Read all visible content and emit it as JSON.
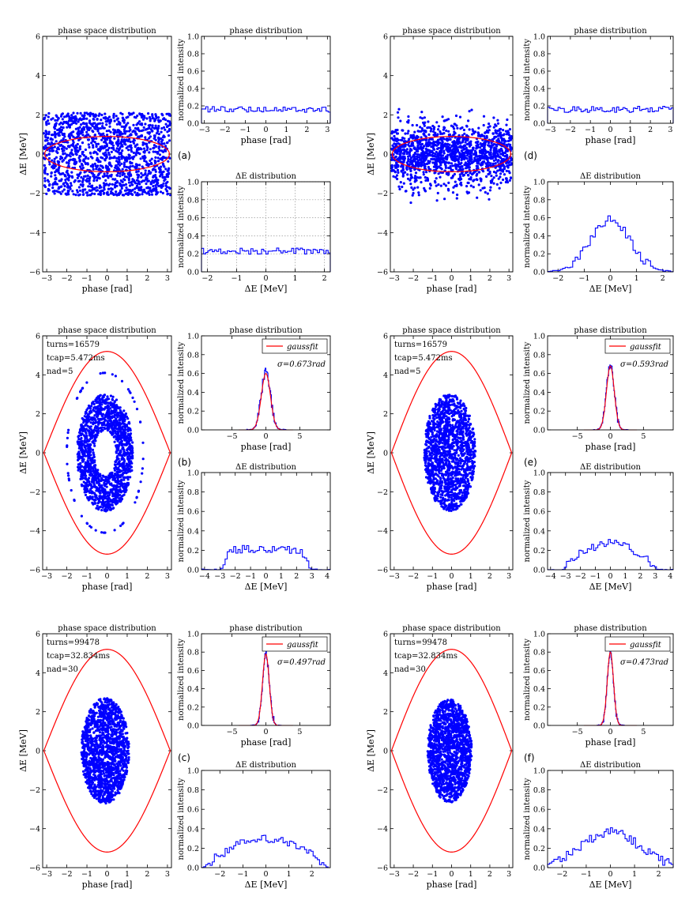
{
  "figure": {
    "colors": {
      "scatter": "#0000ff",
      "hist": "#0000ff",
      "separatrix": "#ff0000",
      "fit": "#ff0000",
      "grid": "#999999"
    },
    "titles": {
      "phase_space": "phase space distribution",
      "phase": "phase distribution",
      "energy": "ΔE distribution"
    },
    "axis_labels": {
      "phase": "phase [rad]",
      "energy": "ΔE [MeV]",
      "intensity": "normalized intensity"
    },
    "legend_label": "gaussfit"
  },
  "chart_data": [
    {
      "panel": "a",
      "type": "scatter",
      "title": "phase space distribution",
      "xlabel": "phase [rad]",
      "ylabel": "ΔE [MeV]",
      "xlim": [
        -3.2,
        3.2
      ],
      "ylim": [
        -6,
        6
      ],
      "xticks": [
        -3,
        -2,
        -1,
        0,
        1,
        2,
        3
      ],
      "yticks": [
        -6,
        -4,
        -2,
        0,
        2,
        4,
        6
      ],
      "distribution": {
        "shape": "uniform",
        "phase_halfwidth": 3.14,
        "energy_halfwidth": 2.1,
        "n_points": 1500
      },
      "overlay": {
        "type": "ellipse",
        "phase_halfwidth": 3.1,
        "energy_halfwidth": 0.9
      },
      "annotations": [],
      "sub_phase": {
        "title": "phase distribution",
        "xlabel": "phase [rad]",
        "ylabel": "normalized intensity",
        "xlim": [
          -3.14,
          3.14
        ],
        "ylim": [
          0,
          1.0
        ],
        "xticks": [
          -3,
          -2,
          -1,
          0,
          1,
          2,
          3
        ],
        "yticks": [
          0.0,
          0.2,
          0.4,
          0.6,
          0.8,
          1.0
        ],
        "histogram": {
          "shape": "flat",
          "level": 0.16,
          "bins": 60
        },
        "legend": null
      },
      "sub_energy": {
        "title": "ΔE distribution",
        "xlabel": "ΔE [MeV]",
        "ylabel": "normalized intensity",
        "xlim": [
          -2.2,
          2.2
        ],
        "ylim": [
          0,
          1.0
        ],
        "xticks": [
          -2,
          -1,
          0,
          1,
          2
        ],
        "yticks": [
          0.0,
          0.2,
          0.4,
          0.6,
          0.8,
          1.0
        ],
        "histogram": {
          "shape": "flat",
          "level": 0.23,
          "bins": 60
        },
        "grid": true
      }
    },
    {
      "panel": "b",
      "type": "scatter",
      "title": "phase space distribution",
      "xlabel": "phase [rad]",
      "ylabel": "ΔE [MeV]",
      "xlim": [
        -3.2,
        3.2
      ],
      "ylim": [
        -6,
        6
      ],
      "xticks": [
        -3,
        -2,
        -1,
        0,
        1,
        2,
        3
      ],
      "yticks": [
        -6,
        -4,
        -2,
        0,
        2,
        4,
        6
      ],
      "distribution": {
        "shape": "hollow",
        "center_phase": -0.1,
        "phase_sigma": 0.65,
        "energy_sigma": 1.4,
        "phase_max": 1.4,
        "energy_max": 3.0,
        "n_points": 1500
      },
      "overlay": {
        "type": "separatrix",
        "peak_energy": 5.2,
        "phase_limit": 3.14
      },
      "annotations": [
        "turns=16579",
        "tcap=5.472ms",
        "nad=5"
      ],
      "sub_phase": {
        "title": "phase distribution",
        "xlabel": "phase [rad]",
        "ylabel": "normalized intensity",
        "xlim": [
          -9.5,
          9.5
        ],
        "ylim": [
          0,
          1.0
        ],
        "xticks": [
          -5,
          0,
          5
        ],
        "yticks": [
          0.0,
          0.2,
          0.4,
          0.6,
          0.8,
          1.0
        ],
        "histogram": {
          "shape": "gauss",
          "sigma": 0.673,
          "peak": 0.62,
          "bins": 60
        },
        "fit": {
          "sigma": 0.673,
          "peak": 0.6
        },
        "legend": "gaussfit",
        "sigma_label": "σ=0.673rad"
      },
      "sub_energy": {
        "title": "ΔE distribution",
        "xlabel": "ΔE [MeV]",
        "ylabel": "normalized intensity",
        "xlim": [
          -4.2,
          4.2
        ],
        "ylim": [
          0,
          1.0
        ],
        "xticks": [
          -4,
          -3,
          -2,
          -1,
          0,
          1,
          2,
          3,
          4
        ],
        "yticks": [
          0.0,
          0.2,
          0.4,
          0.6,
          0.8,
          1.0
        ],
        "histogram": {
          "shape": "plateau",
          "level": 0.21,
          "halfwidth": 2.9,
          "bins": 60
        },
        "grid": false
      }
    },
    {
      "panel": "c",
      "type": "scatter",
      "title": "phase space distribution",
      "xlabel": "phase [rad]",
      "ylabel": "ΔE [MeV]",
      "xlim": [
        -3.2,
        3.2
      ],
      "ylim": [
        -6,
        6
      ],
      "xticks": [
        -3,
        -2,
        -1,
        0,
        1,
        2,
        3
      ],
      "yticks": [
        -6,
        -4,
        -2,
        0,
        2,
        4,
        6
      ],
      "distribution": {
        "shape": "filled",
        "center_phase": -0.1,
        "phase_max": 1.2,
        "energy_max": 2.7,
        "n_points": 1500
      },
      "overlay": {
        "type": "separatrix",
        "peak_energy": 5.2,
        "phase_limit": 3.14
      },
      "annotations": [
        "turns=99478",
        "tcap=32.834ms",
        "nad=30"
      ],
      "sub_phase": {
        "title": "phase distribution",
        "xlabel": "phase [rad]",
        "ylabel": "normalized intensity",
        "xlim": [
          -9.5,
          9.5
        ],
        "ylim": [
          0,
          1.0
        ],
        "xticks": [
          -5,
          0,
          5
        ],
        "yticks": [
          0.0,
          0.2,
          0.4,
          0.6,
          0.8,
          1.0
        ],
        "histogram": {
          "shape": "gauss",
          "sigma": 0.497,
          "peak": 0.78,
          "bins": 60
        },
        "fit": {
          "sigma": 0.497,
          "peak": 0.78
        },
        "legend": "gaussfit",
        "sigma_label": "σ=0.497rad"
      },
      "sub_energy": {
        "title": "ΔE distribution",
        "xlabel": "ΔE [MeV]",
        "ylabel": "normalized intensity",
        "xlim": [
          -2.8,
          2.8
        ],
        "ylim": [
          0,
          1.0
        ],
        "xticks": [
          -2,
          -1,
          0,
          1,
          2
        ],
        "yticks": [
          0.0,
          0.2,
          0.4,
          0.6,
          0.8,
          1.0
        ],
        "histogram": {
          "shape": "dome",
          "peak": 0.29,
          "halfwidth": 2.7,
          "bins": 60
        },
        "grid": false
      }
    },
    {
      "panel": "d",
      "type": "scatter",
      "title": "phase space distribution",
      "xlabel": "phase [rad]",
      "ylabel": "ΔE [MeV]",
      "xlim": [
        -3.2,
        3.2
      ],
      "ylim": [
        -6,
        6
      ],
      "xticks": [
        -3,
        -2,
        -1,
        0,
        1,
        2,
        3
      ],
      "yticks": [
        -6,
        -4,
        -2,
        0,
        2,
        4,
        6
      ],
      "distribution": {
        "shape": "uniform-gauss",
        "phase_halfwidth": 3.14,
        "energy_sigma": 0.75,
        "n_points": 1500
      },
      "overlay": {
        "type": "ellipse",
        "phase_halfwidth": 3.1,
        "energy_halfwidth": 0.9
      },
      "annotations": [],
      "sub_phase": {
        "title": "phase distribution",
        "xlabel": "phase [rad]",
        "ylabel": "normalized intensity",
        "xlim": [
          -3.14,
          3.14
        ],
        "ylim": [
          0,
          1.0
        ],
        "xticks": [
          -3,
          -2,
          -1,
          0,
          1,
          2,
          3
        ],
        "yticks": [
          0.0,
          0.2,
          0.4,
          0.6,
          0.8,
          1.0
        ],
        "histogram": {
          "shape": "flat",
          "level": 0.16,
          "bins": 60
        },
        "legend": null
      },
      "sub_energy": {
        "title": "ΔE distribution",
        "xlabel": "ΔE [MeV]",
        "ylabel": "normalized intensity",
        "xlim": [
          -2.4,
          2.4
        ],
        "ylim": [
          0,
          1.0
        ],
        "xticks": [
          -2,
          -1,
          0,
          1,
          2
        ],
        "yticks": [
          0.0,
          0.2,
          0.4,
          0.6,
          0.8,
          1.0
        ],
        "histogram": {
          "shape": "gauss",
          "sigma": 0.75,
          "peak": 0.58,
          "bins": 50
        },
        "grid": false
      }
    },
    {
      "panel": "e",
      "type": "scatter",
      "title": "phase space distribution",
      "xlabel": "phase [rad]",
      "ylabel": "ΔE [MeV]",
      "xlim": [
        -3.2,
        3.2
      ],
      "ylim": [
        -6,
        6
      ],
      "xticks": [
        -3,
        -2,
        -1,
        0,
        1,
        2,
        3
      ],
      "yticks": [
        -6,
        -4,
        -2,
        0,
        2,
        4,
        6
      ],
      "distribution": {
        "shape": "filled",
        "center_phase": -0.1,
        "phase_max": 1.35,
        "energy_max": 3.0,
        "n_points": 1500
      },
      "overlay": {
        "type": "separatrix",
        "peak_energy": 5.2,
        "phase_limit": 3.14
      },
      "annotations": [
        "turns=16579",
        "tcap=5.472ms",
        "nad=5"
      ],
      "sub_phase": {
        "title": "phase distribution",
        "xlabel": "phase [rad]",
        "ylabel": "normalized intensity",
        "xlim": [
          -9.5,
          9.5
        ],
        "ylim": [
          0,
          1.0
        ],
        "xticks": [
          -5,
          0,
          5
        ],
        "yticks": [
          0.0,
          0.2,
          0.4,
          0.6,
          0.8,
          1.0
        ],
        "histogram": {
          "shape": "gauss",
          "sigma": 0.593,
          "peak": 0.7,
          "bins": 60
        },
        "fit": {
          "sigma": 0.593,
          "peak": 0.68
        },
        "legend": "gaussfit",
        "sigma_label": "σ=0.593rad"
      },
      "sub_energy": {
        "title": "ΔE distribution",
        "xlabel": "ΔE [MeV]",
        "ylabel": "normalized intensity",
        "xlim": [
          -4.2,
          4.2
        ],
        "ylim": [
          0,
          1.0
        ],
        "xticks": [
          -4,
          -3,
          -2,
          -1,
          0,
          1,
          2,
          3,
          4
        ],
        "yticks": [
          0.0,
          0.2,
          0.4,
          0.6,
          0.8,
          1.0
        ],
        "histogram": {
          "shape": "dome",
          "peak": 0.27,
          "halfwidth": 3.2,
          "bins": 60
        },
        "grid": false
      }
    },
    {
      "panel": "f",
      "type": "scatter",
      "title": "phase space distribution",
      "xlabel": "phase [rad]",
      "ylabel": "ΔE [MeV]",
      "xlim": [
        -3.2,
        3.2
      ],
      "ylim": [
        -6,
        6
      ],
      "xticks": [
        -3,
        -2,
        -1,
        0,
        1,
        2,
        3
      ],
      "yticks": [
        -6,
        -4,
        -2,
        0,
        2,
        4,
        6
      ],
      "distribution": {
        "shape": "filled",
        "center_phase": -0.1,
        "phase_max": 1.15,
        "energy_max": 2.65,
        "n_points": 1500
      },
      "overlay": {
        "type": "separatrix",
        "peak_energy": 5.2,
        "phase_limit": 3.14
      },
      "annotations": [
        "turns=99478",
        "tcap=32.834ms",
        "nad=30"
      ],
      "sub_phase": {
        "title": "phase distribution",
        "xlabel": "phase [rad]",
        "ylabel": "normalized intensity",
        "xlim": [
          -9.5,
          9.5
        ],
        "ylim": [
          0,
          1.0
        ],
        "xticks": [
          -5,
          0,
          5
        ],
        "yticks": [
          0.0,
          0.2,
          0.4,
          0.6,
          0.8,
          1.0
        ],
        "histogram": {
          "shape": "gauss",
          "sigma": 0.473,
          "peak": 0.8,
          "bins": 60
        },
        "fit": {
          "sigma": 0.473,
          "peak": 0.8
        },
        "legend": "gaussfit",
        "sigma_label": "σ=0.473rad"
      },
      "sub_energy": {
        "title": "ΔE distribution",
        "xlabel": "ΔE [MeV]",
        "ylabel": "normalized intensity",
        "xlim": [
          -2.6,
          2.6
        ],
        "ylim": [
          0,
          1.0
        ],
        "xticks": [
          -2,
          -1,
          0,
          1,
          2
        ],
        "yticks": [
          0.0,
          0.2,
          0.4,
          0.6,
          0.8,
          1.0
        ],
        "histogram": {
          "shape": "gauss",
          "sigma": 1.2,
          "peak": 0.37,
          "bins": 60
        },
        "grid": false
      }
    }
  ]
}
